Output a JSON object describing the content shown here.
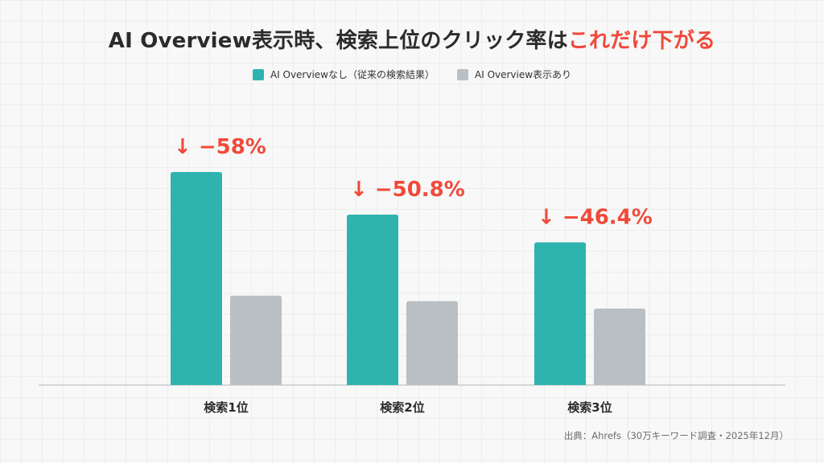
{
  "title": {
    "main": "AI Overview表示時、検索上位のクリック率は",
    "accent": "これだけ下がる"
  },
  "colors": {
    "series_without": "#2fb3ae",
    "series_with": "#b9bfc4",
    "accent": "#f0493a"
  },
  "source": "出典：Ahrefs（30万キーワード調査・2025年12月）",
  "chart_data": {
    "type": "bar",
    "categories": [
      "検索1位",
      "検索2位",
      "検索3位"
    ],
    "series": [
      {
        "name": "AI Overviewなし（従来の検索結果）",
        "values": [
          100,
          80,
          67
        ]
      },
      {
        "name": "AI Overview表示あり",
        "values": [
          42,
          39.4,
          35.9
        ]
      }
    ],
    "annotations": [
      "↓ −58%",
      "↓ −50.8%",
      "↓ −46.4%"
    ],
    "ylim": [
      0,
      100
    ],
    "grid": true,
    "legend_position": "top-center"
  }
}
